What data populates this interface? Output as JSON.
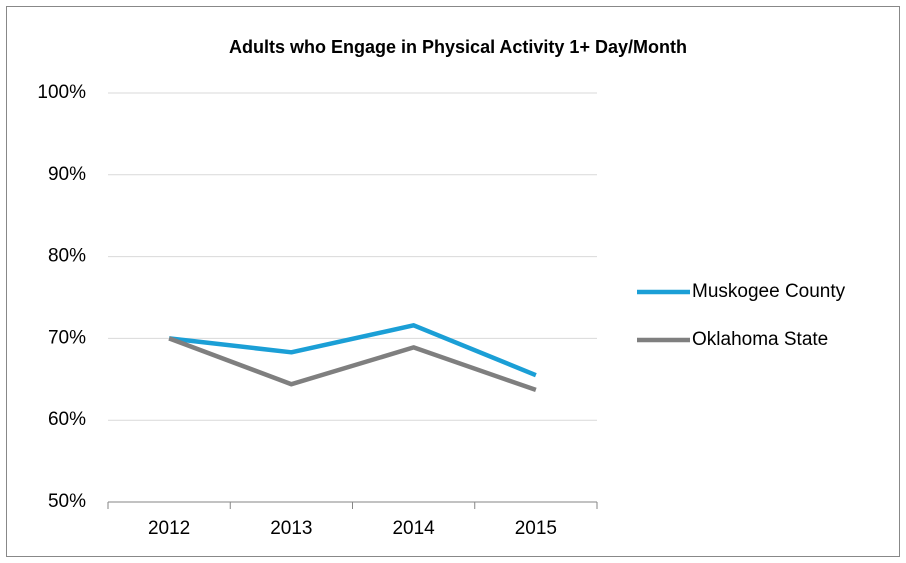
{
  "chart_data": {
    "type": "line",
    "title": "Adults who Engage in Physical Activity 1+ Day/Month",
    "categories": [
      "2012",
      "2013",
      "2014",
      "2015"
    ],
    "series": [
      {
        "name": "Muskogee County",
        "color": "#1b9fd6",
        "values": [
          70,
          68.3,
          71.6,
          65.5
        ]
      },
      {
        "name": "Oklahoma State",
        "color": "#7f7f7f",
        "values": [
          70,
          64.4,
          68.9,
          63.7
        ]
      }
    ],
    "ylim": [
      50,
      100
    ],
    "yticks": [
      {
        "value": 50,
        "label": "50%"
      },
      {
        "value": 60,
        "label": "60%"
      },
      {
        "value": 70,
        "label": "70%"
      },
      {
        "value": 80,
        "label": "80%"
      },
      {
        "value": 90,
        "label": "90%"
      },
      {
        "value": 100,
        "label": "100%"
      }
    ],
    "grid": true,
    "legend": "right"
  }
}
